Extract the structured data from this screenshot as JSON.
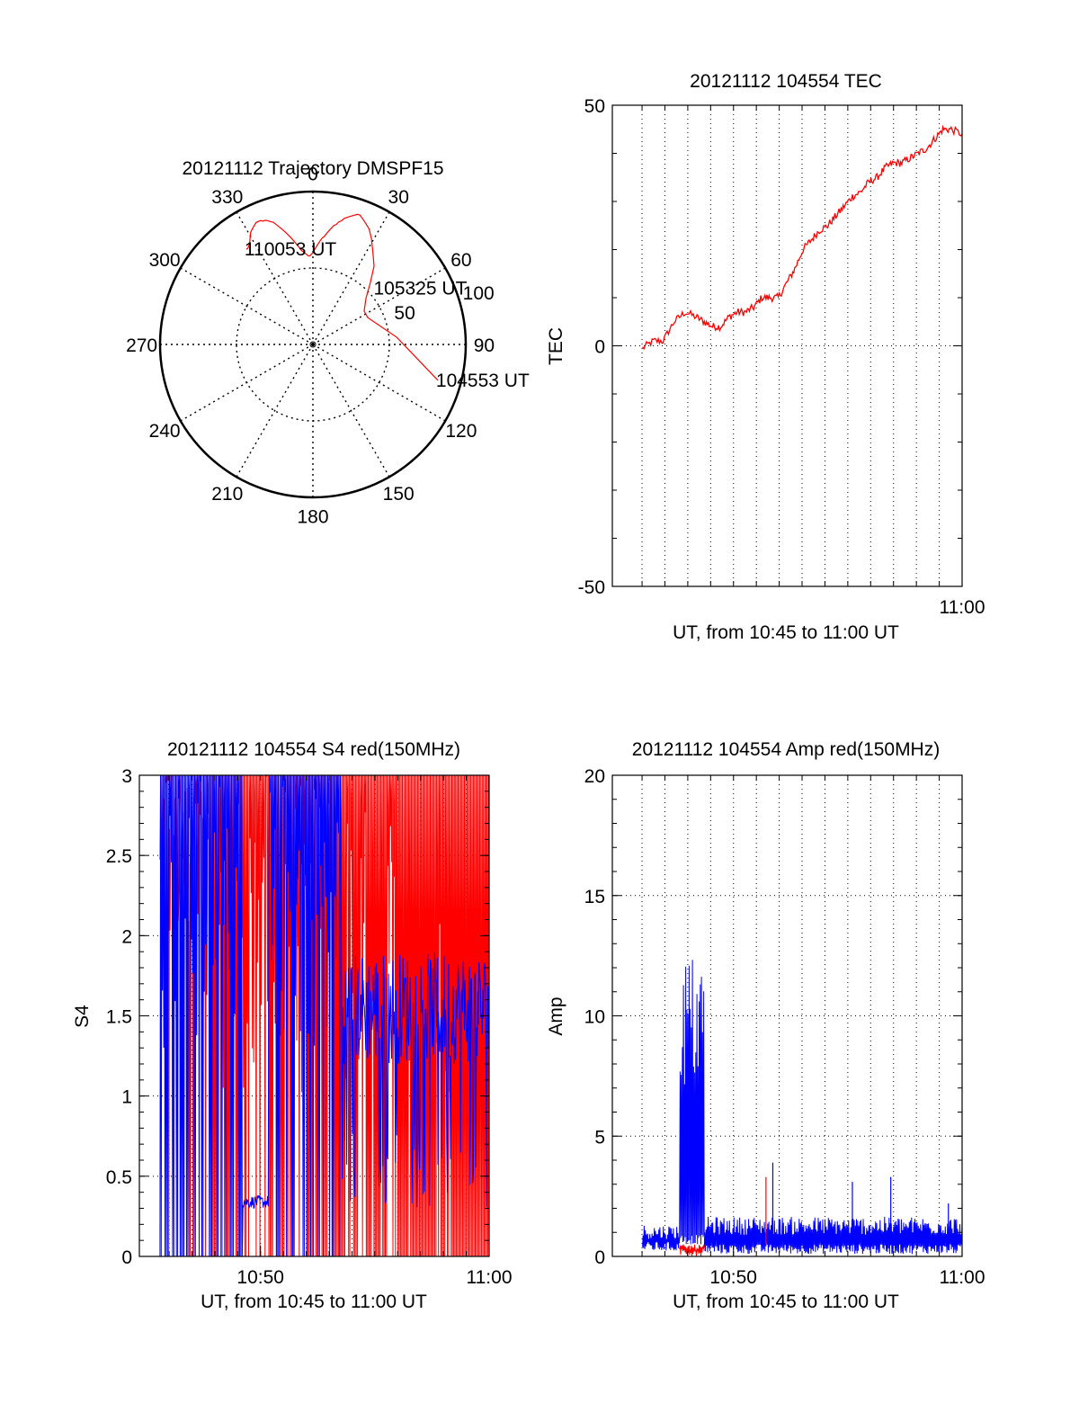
{
  "colors": {
    "red": "#ff0000",
    "blue": "#0000ff",
    "axis": "#000000",
    "grid": "#000000"
  },
  "chart_data": [
    {
      "id": "trajectory",
      "type": "polar",
      "title": "20121112 Trajectory DMSPF15",
      "angle_labels": [
        "0",
        "30",
        "60",
        "90",
        "120",
        "150",
        "180",
        "210",
        "240",
        "270",
        "300",
        "330"
      ],
      "radius_labels": [
        "50",
        "100"
      ],
      "rmax": 100,
      "grid": true,
      "series": [
        {
          "color": "red",
          "points": [
            [
              106,
              85
            ],
            [
              85,
              55
            ],
            [
              64,
              40
            ],
            [
              57,
              40
            ],
            [
              49,
              46
            ],
            [
              43,
              55
            ],
            [
              38,
              65
            ],
            [
              33,
              72
            ],
            [
              29,
              79
            ],
            [
              26,
              84
            ],
            [
              23,
              87
            ],
            [
              21,
              89
            ],
            [
              20,
              90
            ],
            [
              19,
              90
            ],
            [
              18,
              89
            ],
            [
              17,
              88
            ],
            [
              16,
              87
            ],
            [
              15,
              86
            ],
            [
              14,
              85
            ],
            [
              13,
              83
            ],
            [
              12,
              82
            ],
            [
              11,
              80
            ],
            [
              10,
              79
            ],
            [
              9,
              77
            ],
            [
              8,
              75
            ],
            [
              7,
              73
            ],
            [
              6,
              71
            ],
            [
              5,
              70
            ],
            [
              4,
              68
            ],
            [
              3,
              66
            ],
            [
              2,
              64
            ],
            [
              1,
              62
            ],
            [
              0,
              60
            ],
            [
              -1,
              59
            ],
            [
              -2,
              58
            ],
            [
              -3,
              58
            ],
            [
              -4,
              59
            ],
            [
              -5,
              60
            ],
            [
              -6,
              61
            ],
            [
              -7,
              62
            ],
            [
              -8,
              64
            ],
            [
              -9,
              66
            ],
            [
              -10,
              68
            ],
            [
              -11,
              70
            ],
            [
              -12,
              72
            ],
            [
              -13,
              74
            ],
            [
              -14,
              76
            ],
            [
              -15,
              78
            ],
            [
              -16,
              80
            ],
            [
              -17,
              82
            ],
            [
              -18,
              84
            ],
            [
              -19,
              85
            ],
            [
              -20,
              86
            ],
            [
              -21,
              87
            ],
            [
              -22,
              87
            ],
            [
              -23,
              88
            ],
            [
              -24,
              88
            ],
            [
              -25,
              88
            ],
            [
              -26,
              87
            ],
            [
              -27,
              86
            ],
            [
              -28,
              85
            ],
            [
              -29,
              84
            ],
            [
              -30,
              82
            ],
            [
              -31,
              80
            ],
            [
              -32,
              78
            ],
            [
              -33,
              77
            ],
            [
              -34,
              76
            ],
            [
              -35,
              76
            ]
          ]
        }
      ],
      "annotations": [
        {
          "text": "110053 UT",
          "az": -35,
          "r": 76
        },
        {
          "text": "105325 UT",
          "az": 48,
          "r": 55
        },
        {
          "text": "104553 UT",
          "az": 106,
          "r": 85
        }
      ]
    },
    {
      "id": "tec",
      "type": "line",
      "title": "20121112 104554 TEC",
      "ylabel": "TEC",
      "xlabel": "UT, from 10:45 to 11:00 UT",
      "xlim": [
        10.745,
        11.0
      ],
      "ylim": [
        -50,
        50
      ],
      "yticks": [
        -50,
        0,
        50
      ],
      "xticks": [
        {
          "x": 11.0,
          "label": "11:00"
        }
      ],
      "grid": true,
      "series": [
        {
          "color": "red",
          "points": [
            [
              10.767,
              -0.5
            ],
            [
              10.775,
              1
            ],
            [
              10.782,
              1
            ],
            [
              10.79,
              5
            ],
            [
              10.798,
              7
            ],
            [
              10.806,
              6
            ],
            [
              10.812,
              5
            ],
            [
              10.818,
              4
            ],
            [
              10.824,
              4
            ],
            [
              10.83,
              6
            ],
            [
              10.836,
              7
            ],
            [
              10.842,
              7
            ],
            [
              10.848,
              8
            ],
            [
              10.854,
              10
            ],
            [
              10.86,
              10
            ],
            [
              10.866,
              10
            ],
            [
              10.872,
              13
            ],
            [
              10.878,
              16
            ],
            [
              10.884,
              20
            ],
            [
              10.89,
              22
            ],
            [
              10.896,
              24
            ],
            [
              10.902,
              25
            ],
            [
              10.908,
              27
            ],
            [
              10.914,
              29
            ],
            [
              10.92,
              31
            ],
            [
              10.926,
              32
            ],
            [
              10.932,
              34
            ],
            [
              10.938,
              35
            ],
            [
              10.944,
              37
            ],
            [
              10.95,
              38
            ],
            [
              10.956,
              38
            ],
            [
              10.962,
              39
            ],
            [
              10.968,
              40
            ],
            [
              10.974,
              41
            ],
            [
              10.98,
              43
            ],
            [
              10.986,
              45
            ],
            [
              10.992,
              45
            ],
            [
              11.0,
              44
            ]
          ]
        }
      ]
    },
    {
      "id": "s4",
      "type": "line",
      "title": "20121112 104554 S4 red(150MHz)",
      "ylabel": "S4",
      "xlabel": "UT, from 10:45 to 11:00 UT",
      "xlim": [
        10.745,
        11.0
      ],
      "ylim": [
        0,
        3
      ],
      "yticks": [
        0,
        0.5,
        1,
        1.5,
        2,
        2.5,
        3
      ],
      "xticks": [
        {
          "x": 10.8333,
          "label": "10:50"
        },
        {
          "x": 11.0,
          "label": "11:00"
        }
      ],
      "grid": true,
      "series": [
        {
          "color": "red",
          "x_start": 10.76,
          "x_end": 11.0,
          "fill": "oscillating",
          "base": 1.9
        },
        {
          "color": "blue",
          "x_start": 10.76,
          "x_end": 11.0,
          "fill": "oscillating",
          "base": 1.6
        }
      ]
    },
    {
      "id": "amp",
      "type": "line",
      "title": "20121112 104554 Amp red(150MHz)",
      "ylabel": "Amp",
      "xlabel": "UT, from 10:45 to 11:00 UT",
      "xlim": [
        10.745,
        11.0
      ],
      "ylim": [
        0,
        20
      ],
      "yticks": [
        0,
        5,
        10,
        15,
        20
      ],
      "xticks": [
        {
          "x": 10.8333,
          "label": "10:50"
        },
        {
          "x": 11.0,
          "label": "11:00"
        }
      ],
      "grid": true,
      "series": [
        {
          "color": "blue",
          "segments": [
            {
              "x0": 10.767,
              "x1": 10.794,
              "low": 0.2,
              "high": 1.2
            },
            {
              "x0": 10.794,
              "x1": 10.812,
              "low": 0.5,
              "high": 11.5
            },
            {
              "x0": 10.812,
              "x1": 11.0,
              "low": 0.1,
              "high": 1.5
            }
          ]
        },
        {
          "color": "red",
          "segments": [
            {
              "x0": 10.794,
              "x1": 10.812,
              "low": 0.0,
              "high": 0.45
            }
          ]
        }
      ],
      "spikes": [
        {
          "x": 10.857,
          "y": 3.3,
          "color": "red"
        },
        {
          "x": 10.862,
          "y": 3.9,
          "color": "blue"
        },
        {
          "x": 10.92,
          "y": 3.1,
          "color": "blue"
        },
        {
          "x": 10.948,
          "y": 3.3,
          "color": "blue"
        },
        {
          "x": 10.99,
          "y": 2.2,
          "color": "blue"
        }
      ]
    }
  ]
}
